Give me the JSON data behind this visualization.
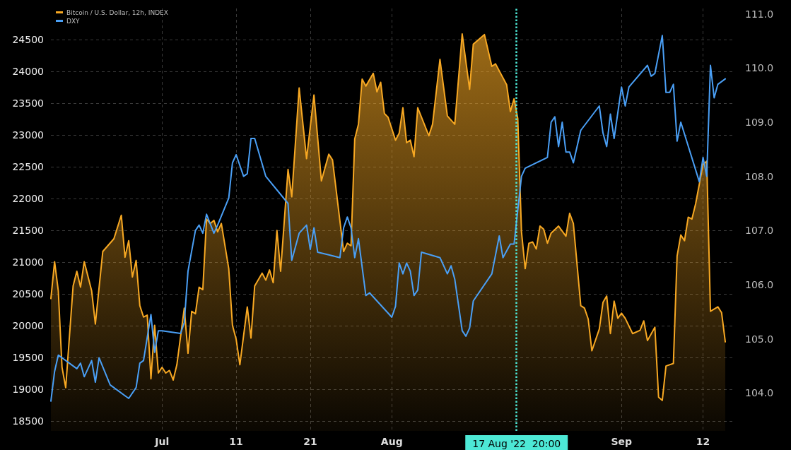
{
  "chart_data": {
    "type": "area",
    "legend": "top left",
    "grid": true,
    "marker": "none",
    "line_style": "solid",
    "xlim": [
      "2022-06-16T00:00",
      "2022-09-16T08:00"
    ],
    "xticks": [
      {
        "value": "2022-07-01T00:00",
        "label": "Jul"
      },
      {
        "value": "2022-07-11T00:00",
        "label": "11"
      },
      {
        "value": "2022-07-21T00:00",
        "label": "21"
      },
      {
        "value": "2022-08-01T00:00",
        "label": "Aug"
      },
      {
        "value": "2022-09-01T00:00",
        "label": "Sep"
      },
      {
        "value": "2022-09-12T00:00",
        "label": "12"
      }
    ],
    "ylim": [
      18350,
      24990
    ],
    "yticks": [
      18500,
      19000,
      19500,
      20000,
      20500,
      21000,
      21500,
      22000,
      22500,
      23000,
      23500,
      24000,
      24500
    ],
    "y2lim": [
      103.3,
      111.1
    ],
    "y2ticks": [
      {
        "value": 104,
        "label": "104.0"
      },
      {
        "value": 105,
        "label": "105.0"
      },
      {
        "value": 106,
        "label": "106.0"
      },
      {
        "value": 107,
        "label": "107.0"
      },
      {
        "value": 108,
        "label": "108.0"
      },
      {
        "value": 109,
        "label": "109.0"
      },
      {
        "value": 110,
        "label": "110.0"
      },
      {
        "value": 111,
        "label": "111.0"
      }
    ],
    "ref_lines": [
      {
        "axis": "x",
        "value": "2022-08-17T20:00",
        "label": "17 Aug '22  20:00",
        "color": "#4de8d6",
        "line_style": "dotted"
      }
    ],
    "series": [
      {
        "name": "Bitcoin / U.S. Dollar, 12h, INDEX",
        "color": "#f7a823",
        "x": [
          "2022-06-16T00:00",
          "2022-06-16T12:00",
          "2022-06-17T00:00",
          "2022-06-17T12:00",
          "2022-06-18T00:00",
          "2022-06-19T00:00",
          "2022-06-19T12:00",
          "2022-06-20T00:00",
          "2022-06-20T12:00",
          "2022-06-21T12:00",
          "2022-06-22T00:00",
          "2022-06-23T00:00",
          "2022-06-24T12:00",
          "2022-06-25T12:00",
          "2022-06-26T00:00",
          "2022-06-26T12:00",
          "2022-06-27T00:00",
          "2022-06-27T12:00",
          "2022-06-28T00:00",
          "2022-06-28T12:00",
          "2022-06-29T00:00",
          "2022-06-29T12:00",
          "2022-06-30T00:00",
          "2022-06-30T12:00",
          "2022-07-01T00:00",
          "2022-07-01T12:00",
          "2022-07-02T00:00",
          "2022-07-02T12:00",
          "2022-07-03T00:00",
          "2022-07-04T00:00",
          "2022-07-04T12:00",
          "2022-07-05T00:00",
          "2022-07-05T12:00",
          "2022-07-06T00:00",
          "2022-07-06T12:00",
          "2022-07-07T00:00",
          "2022-07-07T12:00",
          "2022-07-08T00:00",
          "2022-07-08T12:00",
          "2022-07-09T00:00",
          "2022-07-10T00:00",
          "2022-07-10T12:00",
          "2022-07-11T00:00",
          "2022-07-11T12:00",
          "2022-07-12T12:00",
          "2022-07-13T00:00",
          "2022-07-13T12:00",
          "2022-07-14T12:00",
          "2022-07-15T00:00",
          "2022-07-15T12:00",
          "2022-07-16T00:00",
          "2022-07-16T12:00",
          "2022-07-17T00:00",
          "2022-07-18T00:00",
          "2022-07-18T12:00",
          "2022-07-19T12:00",
          "2022-07-20T12:00",
          "2022-07-21T12:00",
          "2022-07-22T12:00",
          "2022-07-23T12:00",
          "2022-07-24T00:00",
          "2022-07-25T12:00",
          "2022-07-26T00:00",
          "2022-07-26T12:00",
          "2022-07-27T00:00",
          "2022-07-27T12:00",
          "2022-07-28T00:00",
          "2022-07-28T12:00",
          "2022-07-29T12:00",
          "2022-07-30T00:00",
          "2022-07-30T12:00",
          "2022-07-31T00:00",
          "2022-07-31T12:00",
          "2022-08-01T12:00",
          "2022-08-02T00:00",
          "2022-08-02T12:00",
          "2022-08-03T00:00",
          "2022-08-03T12:00",
          "2022-08-04T00:00",
          "2022-08-04T12:00",
          "2022-08-06T00:00",
          "2022-08-06T12:00",
          "2022-08-07T12:00",
          "2022-08-08T12:00",
          "2022-08-09T12:00",
          "2022-08-10T12:00",
          "2022-08-11T12:00",
          "2022-08-12T00:00",
          "2022-08-12T12:00",
          "2022-08-13T12:00",
          "2022-08-14T12:00",
          "2022-08-15T00:00",
          "2022-08-16T12:00",
          "2022-08-17T00:00",
          "2022-08-17T12:00",
          "2022-08-18T00:00",
          "2022-08-18T12:00",
          "2022-08-19T00:00",
          "2022-08-19T12:00",
          "2022-08-20T00:00",
          "2022-08-20T12:00",
          "2022-08-21T00:00",
          "2022-08-21T12:00",
          "2022-08-22T00:00",
          "2022-08-22T12:00",
          "2022-08-23T12:00",
          "2022-08-24T12:00",
          "2022-08-25T00:00",
          "2022-08-25T12:00",
          "2022-08-26T12:00",
          "2022-08-27T00:00",
          "2022-08-27T12:00",
          "2022-08-28T00:00",
          "2022-08-29T00:00",
          "2022-08-29T12:00",
          "2022-08-30T00:00",
          "2022-08-30T12:00",
          "2022-08-31T00:00",
          "2022-08-31T12:00",
          "2022-09-01T00:00",
          "2022-09-01T12:00",
          "2022-09-02T12:00",
          "2022-09-03T12:00",
          "2022-09-04T00:00",
          "2022-09-04T12:00",
          "2022-09-05T12:00",
          "2022-09-06T00:00",
          "2022-09-06T12:00",
          "2022-09-07T00:00",
          "2022-09-08T00:00",
          "2022-09-08T12:00",
          "2022-09-09T00:00",
          "2022-09-09T12:00",
          "2022-09-10T00:00",
          "2022-09-10T12:00",
          "2022-09-11T00:00",
          "2022-09-12T00:00",
          "2022-09-12T12:00",
          "2022-09-13T00:00",
          "2022-09-14T00:00",
          "2022-09-14T12:00",
          "2022-09-15T00:00"
        ],
        "values": [
          20430,
          21010,
          20550,
          19350,
          19030,
          20630,
          20860,
          20610,
          21010,
          20550,
          20030,
          21170,
          21370,
          21740,
          21080,
          21340,
          20770,
          21030,
          20320,
          20140,
          20170,
          19170,
          20010,
          19260,
          19350,
          19260,
          19300,
          19150,
          19390,
          20280,
          19570,
          20230,
          20190,
          20610,
          20570,
          21680,
          21610,
          21660,
          21480,
          21610,
          20900,
          20010,
          19790,
          19390,
          20300,
          19810,
          20630,
          20830,
          20720,
          20880,
          20680,
          21500,
          20860,
          22460,
          22030,
          23740,
          22630,
          23630,
          22280,
          22700,
          22610,
          21170,
          21300,
          21260,
          22940,
          23170,
          23880,
          23770,
          23970,
          23680,
          23830,
          23340,
          23280,
          22920,
          23030,
          23430,
          22880,
          22920,
          22660,
          23430,
          22990,
          23170,
          24190,
          23300,
          23170,
          24590,
          23720,
          24430,
          24480,
          24580,
          24080,
          24120,
          23790,
          23370,
          23570,
          23260,
          21480,
          20900,
          21300,
          21320,
          21210,
          21570,
          21520,
          21300,
          21460,
          21570,
          21410,
          21770,
          21610,
          20320,
          20280,
          20110,
          19610,
          19950,
          20370,
          20470,
          19880,
          20390,
          20120,
          20200,
          20120,
          19880,
          19930,
          20080,
          19770,
          19980,
          18880,
          18830,
          19370,
          19410,
          21100,
          21430,
          21340,
          21710,
          21680,
          21920,
          22540,
          22590,
          20230,
          20300,
          20210,
          19750
        ]
      },
      {
        "name": "DXY",
        "type": "line",
        "axis": "y2",
        "color": "#4a9ff5",
        "x": [
          "2022-06-16T00:00",
          "2022-06-16T12:00",
          "2022-06-17T00:00",
          "2022-06-19T12:00",
          "2022-06-20T00:00",
          "2022-06-20T12:00",
          "2022-06-21T12:00",
          "2022-06-22T00:00",
          "2022-06-22T12:00",
          "2022-06-24T00:00",
          "2022-06-26T12:00",
          "2022-06-27T12:00",
          "2022-06-28T00:00",
          "2022-06-28T12:00",
          "2022-06-29T12:00",
          "2022-06-30T00:00",
          "2022-06-30T12:00",
          "2022-07-01T00:00",
          "2022-07-03T12:00",
          "2022-07-04T00:00",
          "2022-07-04T12:00",
          "2022-07-05T12:00",
          "2022-07-06T00:00",
          "2022-07-06T12:00",
          "2022-07-07T00:00",
          "2022-07-08T00:00",
          "2022-07-08T12:00",
          "2022-07-10T00:00",
          "2022-07-10T12:00",
          "2022-07-11T00:00",
          "2022-07-12T00:00",
          "2022-07-12T12:00",
          "2022-07-13T00:00",
          "2022-07-13T12:00",
          "2022-07-15T00:00",
          "2022-07-18T00:00",
          "2022-07-18T12:00",
          "2022-07-19T12:00",
          "2022-07-20T12:00",
          "2022-07-21T00:00",
          "2022-07-21T12:00",
          "2022-07-22T00:00",
          "2022-07-23T12:00",
          "2022-07-25T00:00",
          "2022-07-25T12:00",
          "2022-07-26T00:00",
          "2022-07-26T12:00",
          "2022-07-27T00:00",
          "2022-07-27T12:00",
          "2022-07-28T12:00",
          "2022-07-29T00:00",
          "2022-08-01T00:00",
          "2022-08-01T12:00",
          "2022-08-02T00:00",
          "2022-08-02T12:00",
          "2022-08-03T00:00",
          "2022-08-03T12:00",
          "2022-08-04T00:00",
          "2022-08-04T12:00",
          "2022-08-05T00:00",
          "2022-08-07T12:00",
          "2022-08-08T12:00",
          "2022-08-09T00:00",
          "2022-08-09T12:00",
          "2022-08-10T12:00",
          "2022-08-11T00:00",
          "2022-08-11T12:00",
          "2022-08-12T00:00",
          "2022-08-14T12:00",
          "2022-08-15T12:00",
          "2022-08-16T00:00",
          "2022-08-17T00:00",
          "2022-08-17T12:00",
          "2022-08-18T12:00",
          "2022-08-19T00:00",
          "2022-08-22T00:00",
          "2022-08-22T12:00",
          "2022-08-23T00:00",
          "2022-08-23T12:00",
          "2022-08-24T00:00",
          "2022-08-24T12:00",
          "2022-08-25T00:00",
          "2022-08-25T12:00",
          "2022-08-26T12:00",
          "2022-08-29T00:00",
          "2022-08-29T12:00",
          "2022-08-30T00:00",
          "2022-08-30T12:00",
          "2022-08-31T00:00",
          "2022-09-01T00:00",
          "2022-09-01T12:00",
          "2022-09-02T00:00",
          "2022-09-04T12:00",
          "2022-09-05T00:00",
          "2022-09-05T12:00",
          "2022-09-06T12:00",
          "2022-09-07T00:00",
          "2022-09-07T12:00",
          "2022-09-08T00:00",
          "2022-09-08T12:00",
          "2022-09-09T00:00",
          "2022-09-11T12:00",
          "2022-09-12T00:00",
          "2022-09-12T12:00",
          "2022-09-13T00:00",
          "2022-09-13T12:00",
          "2022-09-14T00:00",
          "2022-09-15T00:00"
        ],
        "values": [
          103.85,
          104.4,
          104.7,
          104.45,
          104.55,
          104.3,
          104.6,
          104.2,
          104.65,
          104.15,
          103.9,
          104.1,
          104.55,
          104.6,
          105.45,
          104.75,
          105.15,
          105.15,
          105.1,
          105.3,
          106.25,
          107.0,
          107.1,
          106.95,
          107.3,
          106.95,
          107.1,
          107.6,
          108.25,
          108.4,
          108.0,
          108.05,
          108.7,
          108.7,
          108.0,
          107.5,
          106.45,
          106.95,
          107.1,
          106.65,
          107.05,
          106.6,
          106.55,
          106.5,
          107.05,
          107.25,
          107.05,
          106.5,
          106.85,
          105.8,
          105.85,
          105.4,
          105.6,
          106.4,
          106.2,
          106.4,
          106.25,
          105.8,
          105.9,
          106.6,
          106.5,
          106.2,
          106.35,
          106.1,
          105.15,
          105.05,
          105.2,
          105.7,
          106.2,
          106.9,
          106.5,
          106.75,
          106.75,
          108.0,
          108.15,
          108.35,
          109.0,
          109.1,
          108.55,
          109.0,
          108.45,
          108.45,
          108.25,
          108.85,
          109.3,
          108.8,
          108.55,
          109.15,
          108.7,
          109.65,
          109.3,
          109.65,
          110.05,
          109.85,
          109.9,
          110.6,
          109.55,
          109.55,
          109.7,
          108.65,
          109.0,
          107.9,
          108.35,
          108.0,
          110.05,
          109.45,
          109.7,
          109.8
        ]
      }
    ]
  }
}
